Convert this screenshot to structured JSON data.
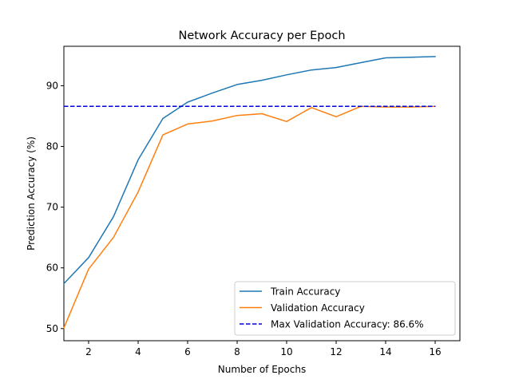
{
  "chart_data": {
    "type": "line",
    "title": "Network Accuracy per Epoch",
    "xlabel": "Number of Epochs",
    "ylabel": "Prediction Accuracy (%)",
    "xlim": [
      1,
      17
    ],
    "ylim": [
      48.0,
      96.5
    ],
    "xticks": [
      2,
      4,
      6,
      8,
      10,
      12,
      14,
      16
    ],
    "yticks": [
      50,
      60,
      70,
      80,
      90
    ],
    "grid": false,
    "legend_position": "lower-right",
    "x": [
      1,
      2,
      3,
      4,
      5,
      6,
      7,
      8,
      9,
      10,
      11,
      12,
      13,
      14,
      15,
      16
    ],
    "series": [
      {
        "name": "Train Accuracy",
        "color": "#1f77b4",
        "style": "solid",
        "values": [
          57.4,
          61.7,
          68.4,
          77.8,
          84.6,
          87.3,
          88.8,
          90.2,
          90.9,
          91.8,
          92.6,
          93.0,
          93.8,
          94.6,
          94.7,
          94.8
        ]
      },
      {
        "name": "Validation Accuracy",
        "color": "#ff7f0e",
        "style": "solid",
        "values": [
          50.1,
          59.8,
          65.0,
          72.5,
          81.9,
          83.7,
          84.2,
          85.1,
          85.4,
          84.1,
          86.4,
          84.9,
          86.6,
          86.5,
          86.5,
          86.6
        ]
      },
      {
        "name": "Max Validation Accuracy: 86.6%",
        "color": "#0000cd",
        "style": "dashed",
        "values": [
          86.6,
          86.6,
          86.6,
          86.6,
          86.6,
          86.6,
          86.6,
          86.6,
          86.6,
          86.6,
          86.6,
          86.6,
          86.6,
          86.6,
          86.6,
          86.6
        ]
      }
    ]
  }
}
